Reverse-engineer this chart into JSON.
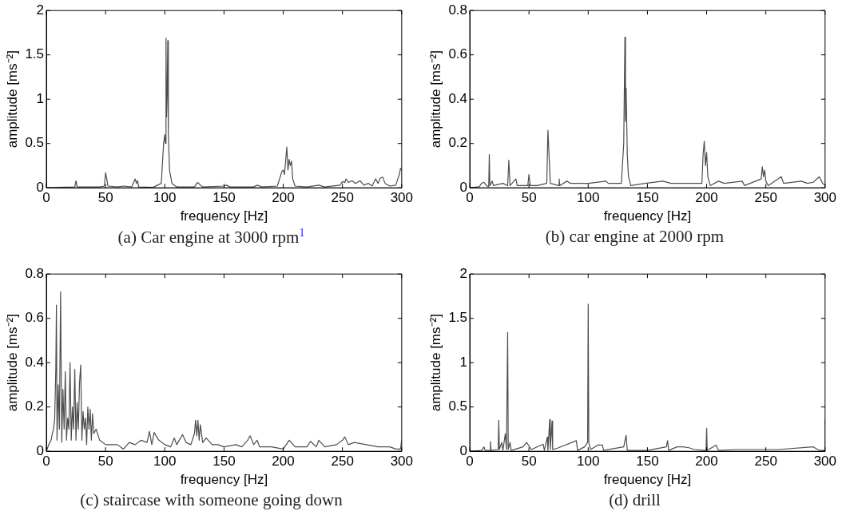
{
  "chart_data": [
    {
      "type": "line",
      "title": "(a) Car engine at 3000 rpm$^{1}$",
      "xlabel": "frequency [Hz]",
      "ylabel": "amplitude [ms⁻²]",
      "xlim": [
        0,
        300
      ],
      "xticks": [
        0,
        50,
        100,
        150,
        200,
        250,
        300
      ],
      "ylim": [
        0,
        2
      ],
      "yticks": [
        0,
        0.5,
        1,
        1.5,
        2
      ],
      "marker": "none",
      "line_style": "solid",
      "x": [
        0,
        10,
        24,
        25,
        26,
        30,
        45,
        49,
        50,
        51,
        52,
        60,
        65,
        72,
        74,
        75,
        76,
        77,
        78,
        90,
        97,
        99,
        100,
        100.5,
        101,
        101.5,
        102,
        102.5,
        103,
        104,
        106,
        110,
        125,
        127,
        128,
        130,
        132,
        150,
        152,
        155,
        175,
        178,
        182,
        195,
        199,
        200,
        201,
        202,
        203,
        204,
        205,
        206,
        207,
        208,
        210,
        220,
        230,
        235,
        248,
        250,
        252,
        253,
        255,
        258,
        261,
        265,
        268,
        272,
        275,
        278,
        280,
        282,
        284,
        286,
        290,
        295,
        298,
        299,
        300
      ],
      "series": [
        {
          "color": "#4d4d4d",
          "values": [
            0,
            0.005,
            0.01,
            0.08,
            0.01,
            0.01,
            0.01,
            0.02,
            0.17,
            0.1,
            0.02,
            0.01,
            0.02,
            0.01,
            0.07,
            0.1,
            0.05,
            0.08,
            0.01,
            0.005,
            0.05,
            0.5,
            0.6,
            0.5,
            1.69,
            0.8,
            1.07,
            1.66,
            0.6,
            0.2,
            0.05,
            0.01,
            0.01,
            0.05,
            0.06,
            0.03,
            0.01,
            0.02,
            0.03,
            0.01,
            0.01,
            0.03,
            0.01,
            0.02,
            0.19,
            0.2,
            0.15,
            0.3,
            0.46,
            0.2,
            0.32,
            0.25,
            0.3,
            0.1,
            0.02,
            0.01,
            0.03,
            0.01,
            0.03,
            0.07,
            0.06,
            0.1,
            0.06,
            0.08,
            0.05,
            0.08,
            0.03,
            0.05,
            0.02,
            0.1,
            0.05,
            0.11,
            0.12,
            0.05,
            0.02,
            0.03,
            0.15,
            0.22,
            0.2
          ]
        }
      ]
    },
    {
      "type": "line",
      "title": "(b) car engine at 2000 rpm",
      "xlabel": "frequency [Hz]",
      "ylabel": "amplitude [ms⁻²]",
      "xlim": [
        0,
        300
      ],
      "xticks": [
        0,
        50,
        100,
        150,
        200,
        250,
        300
      ],
      "ylim": [
        0,
        0.8
      ],
      "yticks": [
        0,
        0.2,
        0.4,
        0.6,
        0.8
      ],
      "marker": "none",
      "line_style": "solid",
      "x": [
        0,
        8,
        10,
        12,
        14,
        16,
        16.5,
        17,
        19,
        20,
        28,
        32,
        33,
        34,
        39,
        40,
        49,
        50,
        51,
        57,
        65,
        66,
        67,
        68,
        75,
        75.5,
        76,
        82,
        85,
        100,
        115,
        117,
        128,
        130,
        131,
        131.5,
        132,
        133,
        134,
        136,
        148,
        163,
        170,
        175,
        196,
        197,
        198,
        199,
        200,
        201,
        203,
        210,
        215,
        230,
        232,
        246,
        247,
        248,
        249,
        250,
        252,
        263,
        265,
        280,
        285,
        290,
        295,
        298,
        300
      ],
      "series": [
        {
          "color": "#4d4d4d",
          "values": [
            0,
            0.005,
            0.02,
            0.025,
            0.01,
            0.005,
            0.15,
            0.01,
            0.03,
            0.01,
            0.02,
            0.01,
            0.125,
            0.01,
            0.04,
            0.01,
            0.01,
            0.06,
            0.01,
            0.01,
            0.02,
            0.26,
            0.14,
            0.02,
            0.01,
            0.04,
            0.01,
            0.03,
            0.02,
            0.02,
            0.03,
            0.02,
            0.02,
            0.2,
            0.68,
            0.3,
            0.45,
            0.15,
            0.05,
            0.01,
            0.02,
            0.03,
            0.02,
            0.02,
            0.02,
            0.15,
            0.21,
            0.1,
            0.16,
            0.05,
            0.01,
            0.03,
            0.02,
            0.03,
            0.01,
            0.04,
            0.095,
            0.05,
            0.08,
            0.03,
            0.01,
            0.05,
            0.02,
            0.03,
            0.02,
            0.025,
            0.05,
            0.02,
            0.01
          ]
        }
      ]
    },
    {
      "type": "line",
      "title": "(c) staircase with someone going down",
      "xlabel": "frequency [Hz]",
      "ylabel": "amplitude [ms⁻²]",
      "xlim": [
        0,
        300
      ],
      "xticks": [
        0,
        50,
        100,
        150,
        200,
        250,
        300
      ],
      "ylim": [
        0,
        0.8
      ],
      "yticks": [
        0,
        0.2,
        0.4,
        0.6,
        0.8
      ],
      "marker": "none",
      "line_style": "solid",
      "x": [
        0,
        2,
        4,
        5,
        6,
        7,
        8,
        8.5,
        9,
        10,
        11,
        12,
        13,
        14,
        15,
        16,
        17,
        18,
        19,
        20,
        21,
        22,
        23,
        24,
        25,
        26,
        27,
        28,
        29,
        30,
        31,
        32,
        33,
        34,
        35,
        36,
        37,
        38,
        39,
        40,
        42,
        45,
        50,
        60,
        65,
        70,
        75,
        80,
        85,
        87,
        89,
        91,
        95,
        100,
        105,
        108,
        110,
        115,
        118,
        122,
        125,
        126,
        127,
        128,
        129,
        130,
        132,
        135,
        140,
        145,
        150,
        160,
        165,
        170,
        172,
        175,
        178,
        180,
        190,
        200,
        205,
        210,
        220,
        223,
        228,
        230,
        235,
        245,
        250,
        252,
        255,
        260,
        270,
        280,
        290,
        295,
        299,
        300
      ],
      "series": [
        {
          "color": "#4d4d4d",
          "values": [
            0,
            0.03,
            0.05,
            0.08,
            0.1,
            0.14,
            0.38,
            0.66,
            0.05,
            0.3,
            0.1,
            0.72,
            0.04,
            0.28,
            0.1,
            0.36,
            0.05,
            0.15,
            0.1,
            0.4,
            0.05,
            0.2,
            0.1,
            0.37,
            0.05,
            0.22,
            0.1,
            0.31,
            0.39,
            0.05,
            0.18,
            0.1,
            0.15,
            0.03,
            0.2,
            0.1,
            0.19,
            0.05,
            0.17,
            0.08,
            0.1,
            0.05,
            0.03,
            0.03,
            0.01,
            0.04,
            0.03,
            0.05,
            0.04,
            0.09,
            0.03,
            0.085,
            0.05,
            0.03,
            0.02,
            0.06,
            0.03,
            0.075,
            0.04,
            0.03,
            0.08,
            0.14,
            0.07,
            0.14,
            0.05,
            0.12,
            0.04,
            0.06,
            0.03,
            0.03,
            0.02,
            0.03,
            0.02,
            0.05,
            0.07,
            0.03,
            0.05,
            0.02,
            0.02,
            0.01,
            0.05,
            0.02,
            0.02,
            0.045,
            0.02,
            0.05,
            0.02,
            0.03,
            0.05,
            0.065,
            0.03,
            0.04,
            0.03,
            0.02,
            0.02,
            0.01,
            0.01,
            0.05
          ]
        }
      ]
    },
    {
      "type": "line",
      "title": "(d) drill",
      "xlabel": "frequency [Hz]",
      "ylabel": "amplitude [ms⁻²]",
      "xlim": [
        0,
        300
      ],
      "xticks": [
        0,
        50,
        100,
        150,
        200,
        250,
        300
      ],
      "ylim": [
        0,
        2
      ],
      "yticks": [
        0,
        0.5,
        1,
        1.5,
        2
      ],
      "marker": "none",
      "line_style": "solid",
      "x": [
        0,
        10,
        12,
        13,
        17,
        17.5,
        18,
        24,
        24.5,
        25,
        27,
        28,
        30,
        31,
        32,
        32.5,
        34,
        35,
        45,
        48,
        50,
        52,
        62,
        63,
        65.5,
        66,
        67.5,
        68,
        69.5,
        70,
        75,
        90,
        91,
        97,
        99.5,
        100,
        100.5,
        102,
        108,
        112,
        113,
        130,
        132,
        133,
        150,
        166,
        167,
        168,
        175,
        180,
        185,
        190,
        199.5,
        200,
        200.5,
        208,
        210,
        225,
        250,
        260,
        290,
        295,
        299.5,
        300
      ],
      "series": [
        {
          "color": "#4d4d4d",
          "values": [
            0,
            0.01,
            0.05,
            0.01,
            0.01,
            0.11,
            0.01,
            0.02,
            0.35,
            0.02,
            0.1,
            0.01,
            0.2,
            0.02,
            1.34,
            0.02,
            0.1,
            0.01,
            0.05,
            0.1,
            0.06,
            0.02,
            0.08,
            0.01,
            0.16,
            0.01,
            0.36,
            0.02,
            0.34,
            0.02,
            0.04,
            0.12,
            0.01,
            0.05,
            0.1,
            1.66,
            0.1,
            0.02,
            0.07,
            0.07,
            0.01,
            0.05,
            0.18,
            0.01,
            0.01,
            0.05,
            0.12,
            0.01,
            0.05,
            0.05,
            0.04,
            0.02,
            0.01,
            0.26,
            0.01,
            0.07,
            0.01,
            0.02,
            0.02,
            0.02,
            0.05,
            0.01,
            0.01,
            0.36
          ]
        }
      ]
    }
  ]
}
